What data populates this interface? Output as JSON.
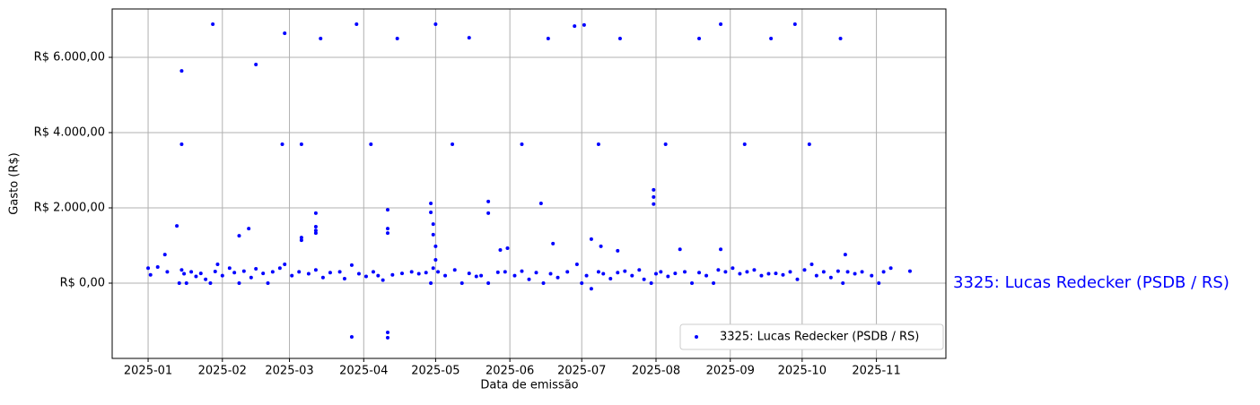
{
  "chart_data": {
    "type": "scatter",
    "annotation": "3325: Lucas Redecker (PSDB / RS)",
    "xlabel": "Data de emissão",
    "ylabel": "Gasto (R$)",
    "xlim": [
      -15,
      333
    ],
    "ylim": [
      -2000,
      7286
    ],
    "xticks": [
      {
        "value": 0,
        "label": "2025-01"
      },
      {
        "value": 31,
        "label": "2025-02"
      },
      {
        "value": 59,
        "label": "2025-03"
      },
      {
        "value": 90,
        "label": "2025-04"
      },
      {
        "value": 120,
        "label": "2025-05"
      },
      {
        "value": 151,
        "label": "2025-06"
      },
      {
        "value": 181,
        "label": "2025-07"
      },
      {
        "value": 212,
        "label": "2025-08"
      },
      {
        "value": 243,
        "label": "2025-09"
      },
      {
        "value": 273,
        "label": "2025-10"
      },
      {
        "value": 304,
        "label": "2025-11"
      }
    ],
    "yticks": [
      {
        "value": 0,
        "label": "R$ 0,00"
      },
      {
        "value": 2000,
        "label": "R$ 2.000,00"
      },
      {
        "value": 4000,
        "label": "R$ 4.000,00"
      },
      {
        "value": 6000,
        "label": "R$ 6.000,00"
      }
    ],
    "grid": true,
    "legend": "lower right",
    "series": [
      {
        "name": "3325: Lucas Redecker (PSDB / RS)",
        "color": "#0000ff",
        "x": [
          27,
          57,
          72,
          87,
          104,
          120,
          134,
          167,
          178,
          182,
          197,
          230,
          239,
          260,
          270,
          289,
          14,
          45,
          14,
          56,
          64,
          93,
          127,
          156,
          188,
          216,
          249,
          276,
          12,
          38,
          42,
          64,
          70,
          70,
          70,
          70,
          64,
          100,
          100,
          100,
          85,
          100,
          100,
          118,
          118,
          119,
          119,
          120,
          120,
          164,
          142,
          142,
          169,
          185,
          189,
          211,
          211,
          211,
          222,
          239,
          291,
          7,
          147,
          150,
          196,
          0,
          1,
          4,
          8,
          13,
          14,
          15,
          16,
          18,
          20,
          22,
          24,
          26,
          28,
          29,
          31,
          34,
          36,
          38,
          40,
          43,
          45,
          48,
          50,
          52,
          55,
          57,
          60,
          63,
          67,
          70,
          73,
          76,
          80,
          82,
          85,
          88,
          91,
          94,
          96,
          98,
          102,
          106,
          110,
          113,
          116,
          118,
          119,
          121,
          124,
          128,
          131,
          134,
          137,
          139,
          142,
          146,
          149,
          153,
          156,
          159,
          162,
          165,
          168,
          171,
          175,
          179,
          181,
          183,
          185,
          188,
          190,
          193,
          196,
          199,
          202,
          205,
          207,
          210,
          212,
          214,
          217,
          220,
          224,
          227,
          230,
          233,
          236,
          238,
          241,
          244,
          247,
          250,
          253,
          256,
          259,
          262,
          265,
          268,
          271,
          274,
          277,
          279,
          282,
          285,
          288,
          290,
          292,
          295,
          298,
          302,
          305,
          307,
          310,
          318
        ],
        "values": [
          6880,
          6640,
          6500,
          6880,
          6500,
          6880,
          6520,
          6500,
          6830,
          6860,
          6500,
          6500,
          6880,
          6500,
          6880,
          6500,
          5640,
          5810,
          3690,
          3690,
          3690,
          3690,
          3690,
          3690,
          3690,
          3690,
          3690,
          3690,
          1520,
          1260,
          1450,
          1210,
          1860,
          1500,
          1400,
          1330,
          1140,
          1950,
          1450,
          1330,
          -1430,
          -1310,
          -1450,
          2120,
          1880,
          1570,
          1290,
          980,
          620,
          2120,
          2170,
          1860,
          1050,
          1170,
          980,
          2480,
          2290,
          2100,
          900,
          900,
          760,
          760,
          880,
          930,
          860,
          400,
          220,
          430,
          300,
          0,
          350,
          250,
          0,
          300,
          180,
          260,
          100,
          0,
          310,
          500,
          200,
          400,
          280,
          0,
          320,
          150,
          380,
          260,
          0,
          300,
          400,
          500,
          200,
          300,
          250,
          350,
          150,
          280,
          300,
          120,
          480,
          250,
          180,
          300,
          200,
          80,
          220,
          260,
          300,
          250,
          280,
          0,
          400,
          300,
          200,
          350,
          0,
          260,
          180,
          200,
          0,
          290,
          300,
          200,
          320,
          100,
          280,
          0,
          250,
          150,
          300,
          500,
          0,
          200,
          -150,
          300,
          250,
          120,
          280,
          320,
          200,
          350,
          100,
          0,
          250,
          300,
          180,
          260,
          300,
          0,
          280,
          200,
          0,
          350,
          300,
          400,
          250,
          300,
          350,
          200,
          250,
          260,
          220,
          300,
          100,
          350,
          500,
          200,
          300,
          150,
          320,
          0,
          300,
          250,
          300,
          200,
          0,
          300,
          400,
          320
        ]
      }
    ]
  }
}
